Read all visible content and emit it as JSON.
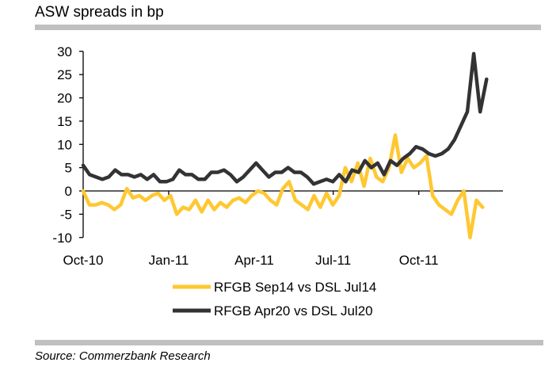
{
  "header": {
    "title": "ASW spreads in bp"
  },
  "footer": {
    "source": "Source: Commerzbank Research"
  },
  "colors": {
    "series1": "#FFC832",
    "series2": "#333333",
    "rule": "#c0c0c0"
  },
  "chart_data": {
    "type": "line",
    "title": "ASW spreads in bp",
    "xlabel": "",
    "ylabel": "",
    "ylim": [
      -10,
      30
    ],
    "yticks": [
      "30",
      "25",
      "20",
      "15",
      "10",
      "5",
      "0",
      "-5",
      "-10"
    ],
    "ytick_values": [
      30,
      25,
      20,
      15,
      10,
      5,
      0,
      -5,
      -10
    ],
    "xticks": [
      "Oct-10",
      "Jan-11",
      "Apr-11",
      "Jul-11",
      "Oct-11"
    ],
    "xtick_weeks": [
      0,
      13,
      26,
      38,
      51
    ],
    "x_unit": "weeks since Oct-10",
    "grid": false,
    "legend": "bottom-center",
    "series": [
      {
        "name": "RFGB Sep14 vs DSL Jul14",
        "color": "#FFC832",
        "x_end_week": 60.7,
        "values": [
          0,
          -3,
          -3,
          -2.5,
          -3,
          -4,
          -3,
          0.5,
          -1.5,
          -1,
          -2,
          -1,
          -0.5,
          -2,
          -1,
          -5,
          -3.5,
          -4,
          -2,
          -4.5,
          -2,
          -4,
          -2.5,
          -3.5,
          -2,
          -1.5,
          -2.5,
          -1,
          0,
          -0.5,
          -2,
          -3,
          0.5,
          2,
          -2,
          -3,
          -4,
          -1,
          -3.5,
          -0.5,
          -3,
          -1,
          5,
          2,
          6,
          1,
          7,
          3,
          2,
          5,
          12,
          4,
          7,
          5,
          6,
          7.5,
          -1,
          -3,
          -4,
          -5,
          -2,
          0,
          -10,
          -2,
          -3.5
        ]
      },
      {
        "name": "RFGB Apr20 vs DSL Jul20",
        "color": "#333333",
        "x_end_week": 61.3,
        "values": [
          5.5,
          3.5,
          3,
          2.5,
          3,
          4.5,
          3.5,
          3.5,
          3,
          3.5,
          2.5,
          3.5,
          2,
          2,
          2.5,
          4.5,
          3.5,
          3.5,
          2.5,
          2.5,
          4,
          4,
          4.5,
          3.5,
          2,
          3,
          4.5,
          6,
          4.5,
          3,
          4,
          4,
          5,
          4,
          4,
          3,
          1.5,
          2,
          2.5,
          2,
          3.5,
          2,
          4.5,
          4,
          6.5,
          5,
          6,
          3.5,
          6.5,
          5.5,
          7,
          8,
          9.5,
          9,
          8,
          7.5,
          8,
          9,
          11,
          14,
          17,
          29.5,
          17,
          24
        ]
      }
    ]
  }
}
